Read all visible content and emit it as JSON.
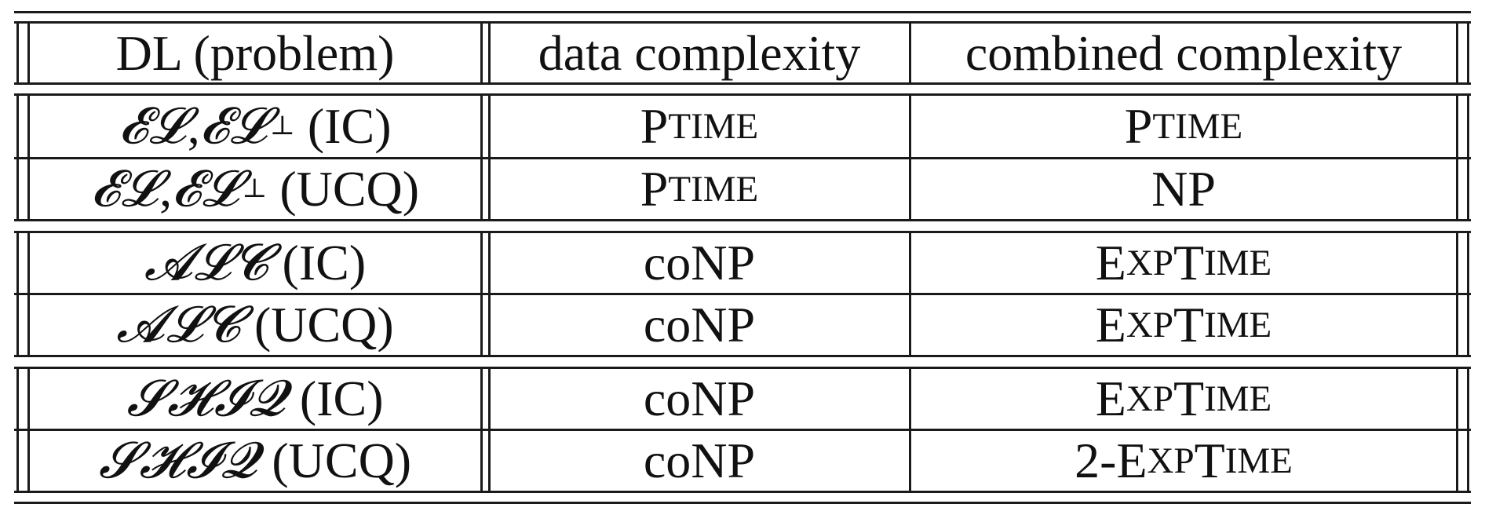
{
  "table": {
    "headers": [
      "DL (problem)",
      "data complexity",
      "combined complexity"
    ],
    "groups": [
      [
        {
          "dl": [
            "𝓔𝓛",
            ", ",
            "𝓔𝓛",
            "⊥"
          ],
          "problem": "(IC)",
          "data": [
            "P",
            "TIME"
          ],
          "combined": [
            "P",
            "TIME"
          ]
        },
        {
          "dl": [
            "𝓔𝓛",
            ", ",
            "𝓔𝓛",
            "⊥"
          ],
          "problem": "(UCQ)",
          "data": [
            "P",
            "TIME"
          ],
          "combined": "NP"
        }
      ],
      [
        {
          "dl": "𝓐𝓛𝓒",
          "problem": "(IC)",
          "data": "coNP",
          "combined": [
            "E",
            "XP",
            "T",
            "IME"
          ]
        },
        {
          "dl": "𝓐𝓛𝓒",
          "problem": "(UCQ)",
          "data": "coNP",
          "combined": [
            "E",
            "XP",
            "T",
            "IME"
          ]
        }
      ],
      [
        {
          "dl": "𝓢𝓗𝓘𝓠",
          "problem": "(IC)",
          "data": "coNP",
          "combined": [
            "E",
            "XP",
            "T",
            "IME"
          ]
        },
        {
          "dl": "𝓢𝓗𝓘𝓠",
          "problem": "(UCQ)",
          "data": "coNP",
          "combined": [
            "2-E",
            "XP",
            "T",
            "IME"
          ]
        }
      ]
    ]
  }
}
